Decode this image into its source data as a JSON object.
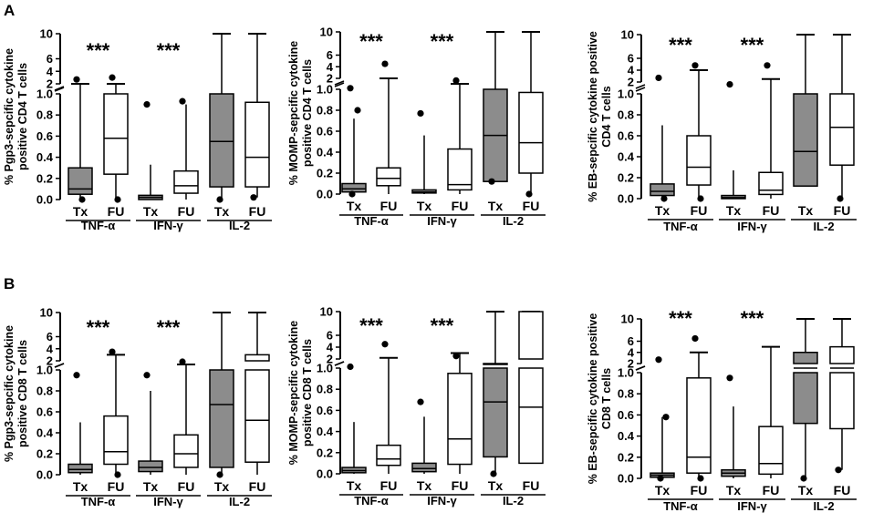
{
  "panel_labels": [
    "A",
    "B"
  ],
  "chart_data": [
    {
      "type": "box",
      "panel": "A",
      "ylabel": [
        "% Pgp3-sepcific cytokine",
        "positive CD4 T cells"
      ],
      "yticks_lower": [
        "0.0",
        "0.2",
        "0.4",
        "0.6",
        "0.8",
        "1.0"
      ],
      "yticks_upper": [
        "2",
        "4",
        "6",
        "10"
      ],
      "categories": [
        "Tx",
        "FU",
        "Tx",
        "FU",
        "Tx",
        "FU"
      ],
      "groups": [
        "TNF-α",
        "IFN-γ",
        "IL-2"
      ],
      "significance": [
        "***",
        "***",
        ""
      ],
      "boxes": [
        {
          "fill": "grey",
          "min": 0.0,
          "q1": 0.05,
          "median": 0.1,
          "q3": 0.3,
          "max": 2.0,
          "outliers": [
            2.7,
            0.0
          ]
        },
        {
          "fill": "white",
          "min": 0.0,
          "q1": 0.24,
          "median": 0.58,
          "q3": 1.0,
          "max": 2.0,
          "outliers": [
            3.0,
            0.0
          ]
        },
        {
          "fill": "grey",
          "min": 0.0,
          "q1": 0.0,
          "median": 0.02,
          "q3": 0.04,
          "max": 0.33,
          "outliers": [
            0.9
          ]
        },
        {
          "fill": "white",
          "min": 0.0,
          "q1": 0.06,
          "median": 0.13,
          "q3": 0.27,
          "max": 0.9,
          "outliers": [
            0.93
          ]
        },
        {
          "fill": "grey",
          "min": 0.0,
          "q1": 0.12,
          "median": 0.55,
          "q3": 1.0,
          "max": 10,
          "outliers": [
            0.0
          ]
        },
        {
          "fill": "white",
          "min": 0.02,
          "q1": 0.12,
          "median": 0.4,
          "q3": 0.92,
          "max": 10,
          "outliers": [
            0.02
          ]
        }
      ]
    },
    {
      "type": "box",
      "panel": "A",
      "ylabel": [
        "% MOMP-sepcific cytokine",
        "positive CD4 T cells"
      ],
      "yticks_lower": [
        "0.0",
        "0.2",
        "0.4",
        "0.6",
        "0.8",
        "1.0"
      ],
      "yticks_upper": [
        "2",
        "4",
        "6",
        "10"
      ],
      "categories": [
        "Tx",
        "FU",
        "Tx",
        "FU",
        "Tx",
        "FU"
      ],
      "groups": [
        "TNF-α",
        "IFN-γ",
        "IL-2"
      ],
      "significance": [
        "***",
        "***",
        ""
      ],
      "boxes": [
        {
          "fill": "grey",
          "min": 0.0,
          "q1": 0.02,
          "median": 0.05,
          "q3": 0.1,
          "max": 0.72,
          "outliers": [
            1.1,
            0.8,
            0.0
          ]
        },
        {
          "fill": "white",
          "min": 0.0,
          "q1": 0.08,
          "median": 0.15,
          "q3": 0.25,
          "max": 2.0,
          "outliers": [
            4.5
          ]
        },
        {
          "fill": "grey",
          "min": 0.0,
          "q1": 0.01,
          "median": 0.02,
          "q3": 0.04,
          "max": 0.56,
          "outliers": [
            0.77
          ]
        },
        {
          "fill": "white",
          "min": 0.0,
          "q1": 0.04,
          "median": 0.09,
          "q3": 0.43,
          "max": 1.5,
          "outliers": [
            1.8
          ]
        },
        {
          "fill": "grey",
          "min": 0.12,
          "q1": 0.12,
          "median": 0.56,
          "q3": 1.0,
          "max": 10,
          "outliers": [
            0.12
          ]
        },
        {
          "fill": "white",
          "min": 0.0,
          "q1": 0.2,
          "median": 0.49,
          "q3": 0.97,
          "max": 10,
          "outliers": [
            0.0
          ]
        }
      ]
    },
    {
      "type": "box",
      "panel": "A",
      "ylabel": [
        "% EB-sepcific cytokine positive",
        "CD4 T cells"
      ],
      "yticks_lower": [
        "0.0",
        "0.2",
        "0.4",
        "0.6",
        "0.8",
        "1.0"
      ],
      "yticks_upper": [
        "2",
        "4",
        "6",
        "10"
      ],
      "categories": [
        "Tx",
        "FU",
        "Tx",
        "FU",
        "Tx",
        "FU"
      ],
      "groups": [
        "TNF-α",
        "IFN-γ",
        "IL-2"
      ],
      "significance": [
        "***",
        "***",
        ""
      ],
      "boxes": [
        {
          "fill": "grey",
          "min": 0.0,
          "q1": 0.03,
          "median": 0.07,
          "q3": 0.14,
          "max": 0.7,
          "outliers": [
            2.7,
            0.0
          ]
        },
        {
          "fill": "white",
          "min": 0.0,
          "q1": 0.13,
          "median": 0.3,
          "q3": 0.6,
          "max": 4.0,
          "outliers": [
            4.8,
            0.0
          ]
        },
        {
          "fill": "grey",
          "min": 0.0,
          "q1": 0.0,
          "median": 0.01,
          "q3": 0.03,
          "max": 0.27,
          "outliers": [
            1.8
          ]
        },
        {
          "fill": "white",
          "min": 0.0,
          "q1": 0.04,
          "median": 0.08,
          "q3": 0.25,
          "max": 2.5,
          "outliers": [
            4.8
          ]
        },
        {
          "fill": "grey",
          "min": 0.12,
          "q1": 0.12,
          "median": 0.45,
          "q3": 1.0,
          "max": 10,
          "outliers": []
        },
        {
          "fill": "white",
          "min": 0.0,
          "q1": 0.32,
          "median": 0.68,
          "q3": 1.0,
          "max": 10,
          "outliers": [
            0.0
          ]
        }
      ]
    },
    {
      "type": "box",
      "panel": "B",
      "ylabel": [
        "% Pgp3-sepcific cytokine",
        "positive CD8 T cells"
      ],
      "yticks_lower": [
        "0.0",
        "0.2",
        "0.4",
        "0.6",
        "0.8",
        "1.0"
      ],
      "yticks_upper": [
        "2",
        "4",
        "6",
        "10"
      ],
      "categories": [
        "Tx",
        "FU",
        "Tx",
        "FU",
        "Tx",
        "FU"
      ],
      "groups": [
        "TNF-α",
        "IFN-γ",
        "IL-2"
      ],
      "significance": [
        "***",
        "***",
        ""
      ],
      "boxes": [
        {
          "fill": "grey",
          "min": 0.0,
          "q1": 0.02,
          "median": 0.05,
          "q3": 0.1,
          "max": 0.5,
          "outliers": [
            0.95
          ]
        },
        {
          "fill": "white",
          "min": 0.0,
          "q1": 0.1,
          "median": 0.22,
          "q3": 0.56,
          "max": 3.0,
          "outliers": [
            3.5,
            0.0
          ]
        },
        {
          "fill": "grey",
          "min": 0.0,
          "q1": 0.03,
          "median": 0.07,
          "q3": 0.13,
          "max": 0.8,
          "outliers": [
            0.95
          ]
        },
        {
          "fill": "white",
          "min": 0.0,
          "q1": 0.07,
          "median": 0.2,
          "q3": 0.38,
          "max": 1.6,
          "outliers": [
            1.9
          ]
        },
        {
          "fill": "grey",
          "min": 0.0,
          "q1": 0.07,
          "median": 0.67,
          "q3": 1.0,
          "max": 10,
          "outliers": [
            0.0
          ]
        },
        {
          "fill": "white",
          "min": 0.0,
          "q1": 0.12,
          "median": 0.52,
          "q3": 3.0,
          "max": 10,
          "outliers": []
        }
      ]
    },
    {
      "type": "box",
      "panel": "B",
      "ylabel": [
        "% MOMP-sepcific cytokine",
        "positive CD8 T cells"
      ],
      "yticks_lower": [
        "0.0",
        "0.2",
        "0.4",
        "0.6",
        "0.8",
        "1.0"
      ],
      "yticks_upper": [
        "2",
        "4",
        "6",
        "10"
      ],
      "categories": [
        "Tx",
        "FU",
        "Tx",
        "FU",
        "Tx",
        "FU"
      ],
      "groups": [
        "TNF-α",
        "IFN-γ",
        "IL-2"
      ],
      "significance": [
        "***",
        "***",
        ""
      ],
      "boxes": [
        {
          "fill": "grey",
          "min": 0.0,
          "q1": 0.01,
          "median": 0.03,
          "q3": 0.06,
          "max": 0.49,
          "outliers": [
            1.15
          ]
        },
        {
          "fill": "white",
          "min": 0.0,
          "q1": 0.08,
          "median": 0.14,
          "q3": 0.27,
          "max": 2.2,
          "outliers": [
            4.5
          ]
        },
        {
          "fill": "grey",
          "min": 0.0,
          "q1": 0.02,
          "median": 0.05,
          "q3": 0.1,
          "max": 0.54,
          "outliers": [
            0.68
          ]
        },
        {
          "fill": "white",
          "min": 0.0,
          "q1": 0.09,
          "median": 0.33,
          "q3": 0.95,
          "max": 3.0,
          "outliers": [
            2.5
          ]
        },
        {
          "fill": "grey",
          "min": 0.0,
          "q1": 0.16,
          "median": 0.68,
          "q3": 1.5,
          "max": 10,
          "outliers": [
            0.0
          ]
        },
        {
          "fill": "white",
          "min": 0.1,
          "q1": 0.1,
          "median": 0.63,
          "q3": 10,
          "max": 10,
          "outliers": []
        }
      ]
    },
    {
      "type": "box",
      "panel": "B",
      "ylabel": [
        "% EB-sepcific cytokine positive",
        "CD8 T cells"
      ],
      "yticks_lower": [
        "0.0",
        "0.2",
        "0.4",
        "0.6",
        "0.8",
        "1.0"
      ],
      "yticks_upper": [
        "2",
        "4",
        "6",
        "10"
      ],
      "categories": [
        "Tx",
        "FU",
        "Tx",
        "FU",
        "Tx",
        "FU"
      ],
      "groups": [
        "TNF-α",
        "IFN-γ",
        "IL-2"
      ],
      "significance": [
        "***",
        "***",
        ""
      ],
      "boxes": [
        {
          "fill": "grey",
          "min": 0.0,
          "q1": 0.01,
          "median": 0.03,
          "q3": 0.05,
          "max": 0.58,
          "outliers": [
            2.7,
            0.58,
            0.0
          ]
        },
        {
          "fill": "white",
          "min": 0.0,
          "q1": 0.05,
          "median": 0.2,
          "q3": 0.95,
          "max": 4.0,
          "outliers": [
            6.5,
            0.0
          ]
        },
        {
          "fill": "grey",
          "min": 0.0,
          "q1": 0.02,
          "median": 0.05,
          "q3": 0.08,
          "max": 0.68,
          "outliers": [
            0.95
          ]
        },
        {
          "fill": "white",
          "min": 0.0,
          "q1": 0.04,
          "median": 0.14,
          "q3": 0.49,
          "max": 5.0,
          "outliers": []
        },
        {
          "fill": "grey",
          "min": 0.0,
          "q1": 0.52,
          "median": 1.5,
          "q3": 4.0,
          "max": 10,
          "outliers": [
            0.0
          ]
        },
        {
          "fill": "white",
          "min": 0.08,
          "q1": 0.47,
          "median": 1.5,
          "q3": 5.0,
          "max": 10,
          "outliers": [
            0.08
          ]
        }
      ]
    }
  ]
}
